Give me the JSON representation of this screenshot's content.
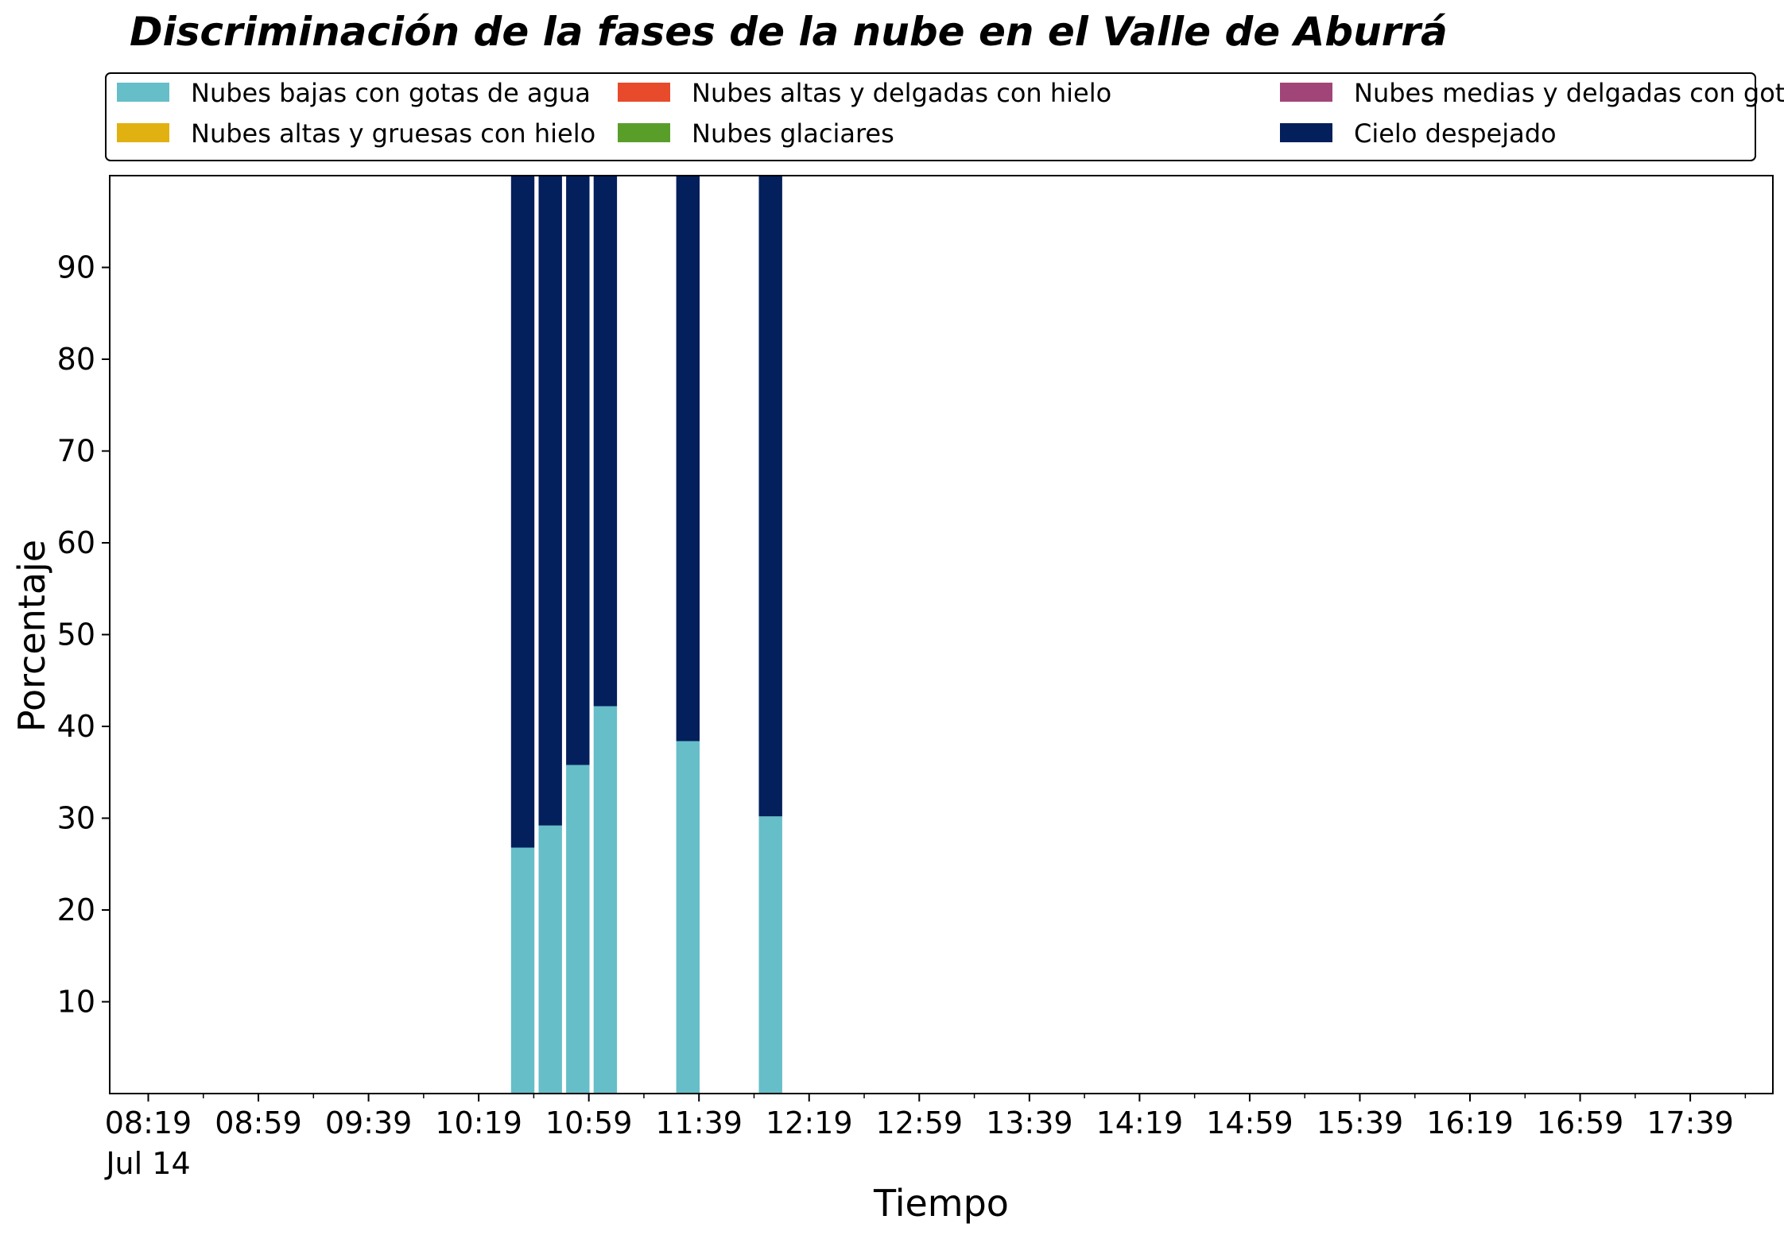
{
  "chart_data": {
    "type": "bar",
    "stacked": true,
    "title": "Discriminación de la fases de la nube en el Valle de Aburrá",
    "xlabel": "Tiempo",
    "ylabel": "Porcentaje",
    "ylim": [
      0,
      100
    ],
    "yticks": [
      10,
      20,
      30,
      40,
      50,
      60,
      70,
      80,
      90
    ],
    "x_start": "08:19",
    "x_end": "17:59",
    "x_ticks": [
      {
        "label": "08:19",
        "sub": "Jul 14"
      },
      {
        "label": "08:59"
      },
      {
        "label": "09:39"
      },
      {
        "label": "10:19"
      },
      {
        "label": "10:59"
      },
      {
        "label": "11:39"
      },
      {
        "label": "12:19"
      },
      {
        "label": "12:59"
      },
      {
        "label": "13:39"
      },
      {
        "label": "14:19"
      },
      {
        "label": "14:59"
      },
      {
        "label": "15:39"
      },
      {
        "label": "16:19"
      },
      {
        "label": "16:59"
      },
      {
        "label": "17:39"
      }
    ],
    "minor_tick_interval_min": 20,
    "bar_width_min": 8.5,
    "x": [
      "10:35",
      "10:45",
      "10:55",
      "11:05",
      "11:35",
      "12:05"
    ],
    "series": [
      {
        "name": "Nubes bajas con gotas de agua",
        "color": "#66bec8",
        "values": [
          26.8,
          29.2,
          35.8,
          42.2,
          38.4,
          30.2
        ]
      },
      {
        "name": "Nubes glaciares",
        "color": "#5a9e2a",
        "values": [
          0,
          0,
          0,
          0,
          0,
          0
        ]
      },
      {
        "name": "Nubes altas y gruesas con hielo",
        "color": "#e1b111",
        "values": [
          0,
          0,
          0,
          0,
          0,
          0
        ]
      },
      {
        "name": "Nubes medias y delgadas con gotas de agua",
        "color": "#a14578",
        "values": [
          0,
          0,
          0,
          0,
          0,
          0
        ]
      },
      {
        "name": "Nubes altas y delgadas con hielo",
        "color": "#e84a2c",
        "values": [
          0,
          0,
          0,
          0,
          0,
          0
        ]
      },
      {
        "name": "Cielo despejado",
        "color": "#031f5c",
        "values": [
          73.2,
          70.8,
          64.2,
          57.8,
          61.6,
          69.8
        ]
      }
    ],
    "legend": {
      "placement": "top",
      "columns": 3,
      "order": [
        0,
        2,
        4,
        1,
        3,
        5
      ]
    },
    "grid": false
  }
}
